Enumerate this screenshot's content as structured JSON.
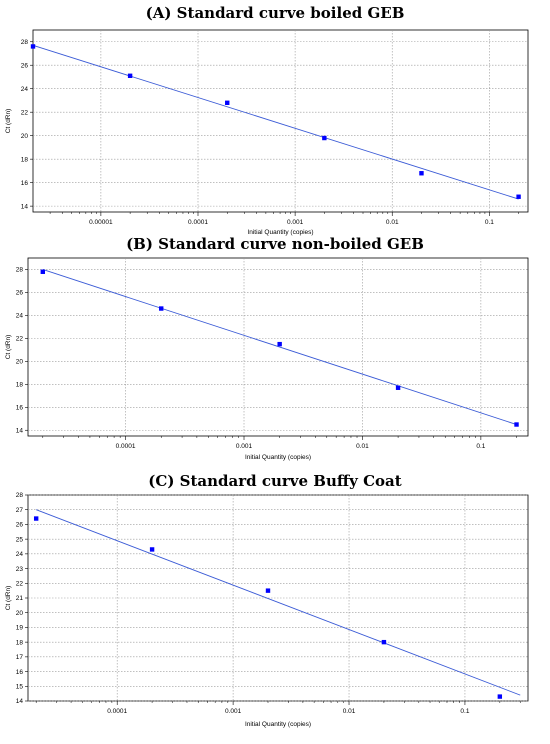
{
  "chart_data": [
    {
      "type": "scatter",
      "title": "(A) Standard curve boiled GEB",
      "xlabel": "Initial Quantity (copies)",
      "ylabel": "Ct (dRn)",
      "x_scale": "log",
      "xlim": [
        2e-06,
        0.25
      ],
      "ylim": [
        13.5,
        29
      ],
      "x_ticks": [
        {
          "value": 1e-05,
          "label": "0.00001"
        },
        {
          "value": 0.0001,
          "label": "0.0001"
        },
        {
          "value": 0.001,
          "label": "0.001"
        },
        {
          "value": 0.01,
          "label": "0.01"
        },
        {
          "value": 0.1,
          "label": "0.1"
        }
      ],
      "y_ticks": [
        {
          "value": 14,
          "label": "14"
        },
        {
          "value": 16,
          "label": "16"
        },
        {
          "value": 18,
          "label": "18"
        },
        {
          "value": 20,
          "label": "20"
        },
        {
          "value": 22,
          "label": "22"
        },
        {
          "value": 24,
          "label": "24"
        },
        {
          "value": 26,
          "label": "26"
        },
        {
          "value": 28,
          "label": "28"
        }
      ],
      "grid": true,
      "points": [
        {
          "x": 2e-06,
          "y": 27.6
        },
        {
          "x": 2e-05,
          "y": 25.1
        },
        {
          "x": 0.0002,
          "y": 22.8
        },
        {
          "x": 0.002,
          "y": 19.8
        },
        {
          "x": 0.02,
          "y": 16.8
        },
        {
          "x": 0.2,
          "y": 14.8
        }
      ],
      "fit_line": [
        {
          "x": 2e-06,
          "y": 27.7
        },
        {
          "x": 0.2,
          "y": 14.6
        }
      ],
      "colors": {
        "points": "#0000ff",
        "line": "#3b5bd6"
      }
    },
    {
      "type": "scatter",
      "title": "(B) Standard curve non-boiled GEB",
      "xlabel": "Initial Quantity (copies)",
      "ylabel": "Ct (dRn)",
      "x_scale": "log",
      "xlim": [
        1.5e-05,
        0.25
      ],
      "ylim": [
        13.5,
        29
      ],
      "x_ticks": [
        {
          "value": 0.0001,
          "label": "0.0001"
        },
        {
          "value": 0.001,
          "label": "0.001"
        },
        {
          "value": 0.01,
          "label": "0.01"
        },
        {
          "value": 0.1,
          "label": "0.1"
        }
      ],
      "y_ticks": [
        {
          "value": 14,
          "label": "14"
        },
        {
          "value": 16,
          "label": "16"
        },
        {
          "value": 18,
          "label": "18"
        },
        {
          "value": 20,
          "label": "20"
        },
        {
          "value": 22,
          "label": "22"
        },
        {
          "value": 24,
          "label": "24"
        },
        {
          "value": 26,
          "label": "26"
        },
        {
          "value": 28,
          "label": "28"
        }
      ],
      "grid": true,
      "points": [
        {
          "x": 2e-05,
          "y": 27.8
        },
        {
          "x": 0.0002,
          "y": 24.6
        },
        {
          "x": 0.002,
          "y": 21.5
        },
        {
          "x": 0.02,
          "y": 17.7
        },
        {
          "x": 0.2,
          "y": 14.5
        }
      ],
      "fit_line": [
        {
          "x": 2e-05,
          "y": 28.0
        },
        {
          "x": 0.2,
          "y": 14.5
        }
      ],
      "colors": {
        "points": "#0000ff",
        "line": "#3b5bd6"
      }
    },
    {
      "type": "scatter",
      "title": "(C) Standard curve Buffy Coat",
      "xlabel": "Initial Quantity (copies)",
      "ylabel": "Ct (dRn)",
      "x_scale": "log",
      "xlim": [
        1.7e-05,
        0.35
      ],
      "ylim": [
        14,
        28
      ],
      "x_ticks": [
        {
          "value": 0.0001,
          "label": "0.0001"
        },
        {
          "value": 0.001,
          "label": "0.001"
        },
        {
          "value": 0.01,
          "label": "0.01"
        },
        {
          "value": 0.1,
          "label": "0.1"
        }
      ],
      "y_ticks": [
        {
          "value": 14,
          "label": "14"
        },
        {
          "value": 15,
          "label": "15"
        },
        {
          "value": 16,
          "label": "16"
        },
        {
          "value": 17,
          "label": "17"
        },
        {
          "value": 18,
          "label": "18"
        },
        {
          "value": 19,
          "label": "19"
        },
        {
          "value": 20,
          "label": "20"
        },
        {
          "value": 21,
          "label": "21"
        },
        {
          "value": 22,
          "label": "22"
        },
        {
          "value": 23,
          "label": "23"
        },
        {
          "value": 24,
          "label": "24"
        },
        {
          "value": 25,
          "label": "25"
        },
        {
          "value": 26,
          "label": "26"
        },
        {
          "value": 27,
          "label": "27"
        },
        {
          "value": 28,
          "label": "28"
        }
      ],
      "grid": true,
      "points": [
        {
          "x": 2e-05,
          "y": 26.4
        },
        {
          "x": 0.0002,
          "y": 24.3
        },
        {
          "x": 0.002,
          "y": 21.5
        },
        {
          "x": 0.02,
          "y": 18.0
        },
        {
          "x": 0.2,
          "y": 14.3
        }
      ],
      "fit_line": [
        {
          "x": 2e-05,
          "y": 27.0
        },
        {
          "x": 0.3,
          "y": 14.4
        }
      ],
      "colors": {
        "points": "#0000ff",
        "line": "#3b5bd6"
      }
    }
  ]
}
